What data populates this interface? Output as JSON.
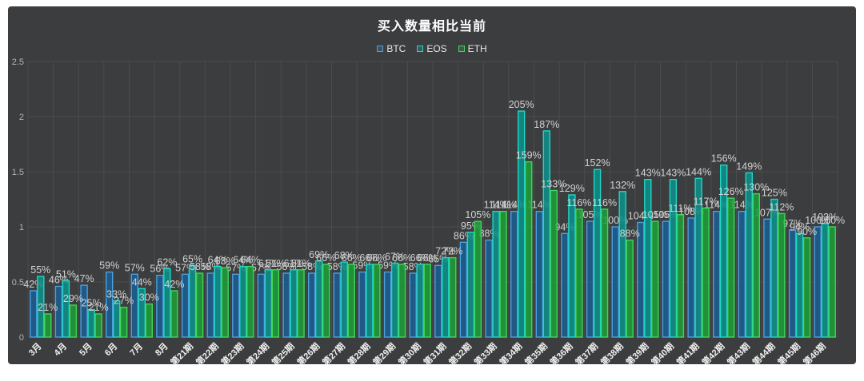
{
  "title": "买入数量相比当前",
  "legend": {
    "items": [
      {
        "label": "BTC",
        "color": "#4aa0e0"
      },
      {
        "label": "EOS",
        "color": "#1fd6c4"
      },
      {
        "label": "ETH",
        "color": "#3fd65a"
      }
    ]
  },
  "y_axis": {
    "ticks": [
      "0",
      "0.5",
      "1",
      "1.5",
      "2",
      "2.5"
    ]
  },
  "colors": {
    "panel_bg": "#3c3d3e",
    "grid": "#4b4c4d",
    "value_label": "#d2d2d2",
    "x_label": "#f2f2f2",
    "y_label": "#b4b4b4"
  },
  "chart_data": {
    "type": "bar",
    "title": "买入数量相比当前",
    "xlabel": "",
    "ylabel": "",
    "ylim": [
      0,
      2.5
    ],
    "grid": true,
    "legend_position": "top",
    "value_label_suffix": "%",
    "categories": [
      "3月",
      "4月",
      "5月",
      "6月",
      "7月",
      "8月",
      "第21期",
      "第22期",
      "第23期",
      "第24期",
      "第25期",
      "第26期",
      "第27期",
      "第28期",
      "第29期",
      "第30期",
      "第31期",
      "第32期",
      "第33期",
      "第34期",
      "第35期",
      "第36期",
      "第37期",
      "第38期",
      "第39期",
      "第40期",
      "第41期",
      "第42期",
      "第43期",
      "第44期",
      "第45期",
      "第46期"
    ],
    "series": [
      {
        "name": "BTC",
        "stroke": "#4aa0e0",
        "fill": "#1b5e92",
        "values_pct": [
          42,
          46,
          47,
          59,
          57,
          56,
          57,
          58,
          57,
          57,
          58,
          58,
          58,
          59,
          59,
          58,
          65,
          86,
          88,
          114,
          114,
          94,
          105,
          100,
          104,
          105,
          108,
          114,
          114,
          107,
          97,
          100
        ]
      },
      {
        "name": "EOS",
        "stroke": "#1fd6c4",
        "fill": "#0d918c",
        "values_pct": [
          55,
          51,
          25,
          33,
          44,
          62,
          65,
          64,
          64,
          61,
          61,
          69,
          68,
          66,
          67,
          66,
          72,
          95,
          114,
          205,
          187,
          129,
          152,
          132,
          143,
          143,
          144,
          156,
          149,
          125,
          94,
          103
        ]
      },
      {
        "name": "ETH",
        "stroke": "#3fd65a",
        "fill": "#1d9e38",
        "values_pct": [
          21,
          29,
          21,
          27,
          30,
          42,
          58,
          63,
          64,
          61,
          61,
          66,
          66,
          66,
          66,
          66,
          72,
          105,
          114,
          159,
          133,
          116,
          116,
          88,
          105,
          111,
          117,
          126,
          130,
          112,
          90,
          100
        ]
      }
    ]
  }
}
